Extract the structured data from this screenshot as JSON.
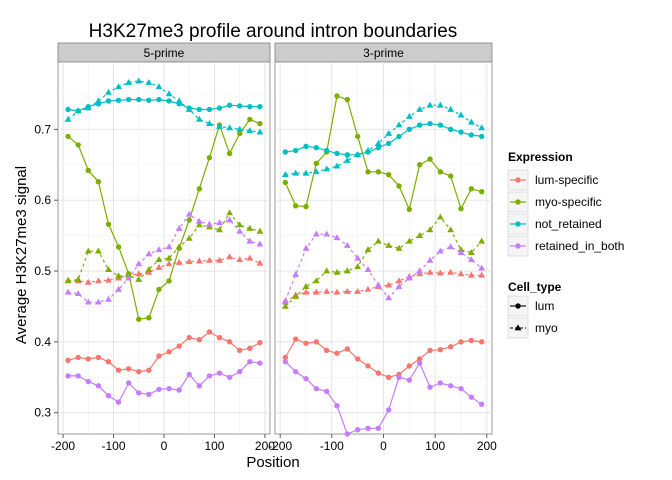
{
  "chart_data": {
    "type": "line",
    "title": "H3K27me3 profile around intron boundaries",
    "xlabel": "Position",
    "ylabel": "Average H3K27me3 signal",
    "xlim": [
      -200,
      200
    ],
    "ylim": [
      0.27,
      0.795
    ],
    "xticks": [
      -200,
      -100,
      0,
      100,
      200
    ],
    "yticks": [
      0.3,
      0.4,
      0.5,
      0.6,
      0.7
    ],
    "grid": true,
    "legend_placement": "right",
    "x": [
      -190,
      -170,
      -150,
      -130,
      -110,
      -90,
      -70,
      -50,
      -30,
      -10,
      10,
      30,
      50,
      70,
      90,
      110,
      130,
      150,
      170,
      190
    ],
    "expression_legend": {
      "title": "Expression",
      "entries": [
        {
          "name": "lum-specific",
          "color": "#F8766D"
        },
        {
          "name": "myo-specific",
          "color": "#7CAE00"
        },
        {
          "name": "not_retained",
          "color": "#00BFC4"
        },
        {
          "name": "retained_in_both",
          "color": "#C77CFF"
        }
      ]
    },
    "celltype_legend": {
      "title": "Cell_type",
      "entries": [
        {
          "name": "lum",
          "dash": "solid",
          "marker": "circle"
        },
        {
          "name": "myo",
          "dash": "dashed",
          "marker": "triangle"
        }
      ]
    },
    "panels": [
      {
        "strip": "5-prime",
        "series": [
          {
            "expression": "lum-specific",
            "cell_type": "lum",
            "values": [
              0.374,
              0.378,
              0.376,
              0.378,
              0.372,
              0.36,
              0.362,
              0.358,
              0.36,
              0.38,
              0.386,
              0.394,
              0.406,
              0.403,
              0.414,
              0.406,
              0.4,
              0.388,
              0.391,
              0.399
            ]
          },
          {
            "expression": "lum-specific",
            "cell_type": "myo",
            "values": [
              0.487,
              0.486,
              0.484,
              0.486,
              0.487,
              0.49,
              0.494,
              0.496,
              0.498,
              0.505,
              0.51,
              0.512,
              0.513,
              0.514,
              0.515,
              0.515,
              0.52,
              0.516,
              0.518,
              0.511
            ]
          },
          {
            "expression": "myo-specific",
            "cell_type": "lum",
            "values": [
              0.69,
              0.678,
              0.642,
              0.626,
              0.566,
              0.534,
              0.496,
              0.432,
              0.434,
              0.474,
              0.486,
              0.532,
              0.572,
              0.616,
              0.66,
              0.706,
              0.666,
              0.694,
              0.714,
              0.708
            ]
          },
          {
            "expression": "myo-specific",
            "cell_type": "myo",
            "values": [
              0.486,
              0.488,
              0.528,
              0.528,
              0.502,
              0.493,
              0.494,
              0.488,
              0.502,
              0.516,
              0.518,
              0.534,
              0.546,
              0.565,
              0.562,
              0.558,
              0.582,
              0.565,
              0.56,
              0.556
            ]
          },
          {
            "expression": "not_retained",
            "cell_type": "lum",
            "values": [
              0.728,
              0.726,
              0.732,
              0.736,
              0.74,
              0.741,
              0.742,
              0.742,
              0.741,
              0.742,
              0.74,
              0.736,
              0.73,
              0.728,
              0.728,
              0.73,
              0.734,
              0.733,
              0.732,
              0.732
            ]
          },
          {
            "expression": "not_retained",
            "cell_type": "myo",
            "values": [
              0.714,
              0.726,
              0.73,
              0.74,
              0.752,
              0.76,
              0.766,
              0.768,
              0.766,
              0.76,
              0.75,
              0.74,
              0.728,
              0.714,
              0.708,
              0.704,
              0.702,
              0.7,
              0.698,
              0.696
            ]
          },
          {
            "expression": "retained_in_both",
            "cell_type": "lum",
            "values": [
              0.352,
              0.352,
              0.344,
              0.338,
              0.324,
              0.315,
              0.342,
              0.328,
              0.326,
              0.333,
              0.334,
              0.332,
              0.354,
              0.338,
              0.352,
              0.356,
              0.35,
              0.358,
              0.372,
              0.37
            ]
          },
          {
            "expression": "retained_in_both",
            "cell_type": "myo",
            "values": [
              0.47,
              0.468,
              0.456,
              0.456,
              0.46,
              0.474,
              0.49,
              0.51,
              0.524,
              0.53,
              0.534,
              0.56,
              0.58,
              0.57,
              0.566,
              0.568,
              0.572,
              0.556,
              0.542,
              0.538
            ]
          }
        ]
      },
      {
        "strip": "3-prime",
        "series": [
          {
            "expression": "lum-specific",
            "cell_type": "lum",
            "values": [
              0.378,
              0.404,
              0.398,
              0.4,
              0.388,
              0.384,
              0.39,
              0.376,
              0.366,
              0.356,
              0.35,
              0.354,
              0.366,
              0.376,
              0.388,
              0.389,
              0.393,
              0.4,
              0.402,
              0.4
            ]
          },
          {
            "expression": "lum-specific",
            "cell_type": "myo",
            "values": [
              0.456,
              0.466,
              0.47,
              0.47,
              0.471,
              0.47,
              0.471,
              0.471,
              0.474,
              0.478,
              0.48,
              0.486,
              0.492,
              0.496,
              0.498,
              0.497,
              0.498,
              0.496,
              0.494,
              0.494
            ]
          },
          {
            "expression": "myo-specific",
            "cell_type": "lum",
            "values": [
              0.625,
              0.592,
              0.591,
              0.652,
              0.668,
              0.747,
              0.742,
              0.69,
              0.64,
              0.64,
              0.636,
              0.62,
              0.587,
              0.65,
              0.658,
              0.64,
              0.634,
              0.588,
              0.616,
              0.612
            ]
          },
          {
            "expression": "myo-specific",
            "cell_type": "myo",
            "values": [
              0.45,
              0.464,
              0.478,
              0.486,
              0.5,
              0.498,
              0.5,
              0.506,
              0.53,
              0.542,
              0.536,
              0.532,
              0.542,
              0.55,
              0.558,
              0.576,
              0.558,
              0.53,
              0.526,
              0.542
            ]
          },
          {
            "expression": "not_retained",
            "cell_type": "lum",
            "values": [
              0.668,
              0.67,
              0.676,
              0.674,
              0.67,
              0.666,
              0.664,
              0.664,
              0.668,
              0.674,
              0.68,
              0.69,
              0.7,
              0.706,
              0.708,
              0.706,
              0.7,
              0.696,
              0.692,
              0.69
            ]
          },
          {
            "expression": "not_retained",
            "cell_type": "myo",
            "values": [
              0.636,
              0.638,
              0.638,
              0.64,
              0.644,
              0.648,
              0.656,
              0.664,
              0.67,
              0.68,
              0.694,
              0.706,
              0.718,
              0.728,
              0.734,
              0.734,
              0.728,
              0.72,
              0.71,
              0.702
            ]
          },
          {
            "expression": "retained_in_both",
            "cell_type": "lum",
            "values": [
              0.372,
              0.358,
              0.348,
              0.334,
              0.33,
              0.31,
              0.27,
              0.276,
              0.278,
              0.278,
              0.304,
              0.35,
              0.346,
              0.37,
              0.336,
              0.342,
              0.338,
              0.334,
              0.322,
              0.312
            ]
          },
          {
            "expression": "retained_in_both",
            "cell_type": "myo",
            "values": [
              0.458,
              0.495,
              0.532,
              0.552,
              0.552,
              0.547,
              0.536,
              0.518,
              0.502,
              0.48,
              0.462,
              0.478,
              0.49,
              0.5,
              0.515,
              0.528,
              0.534,
              0.526,
              0.516,
              0.504
            ]
          }
        ]
      }
    ]
  }
}
